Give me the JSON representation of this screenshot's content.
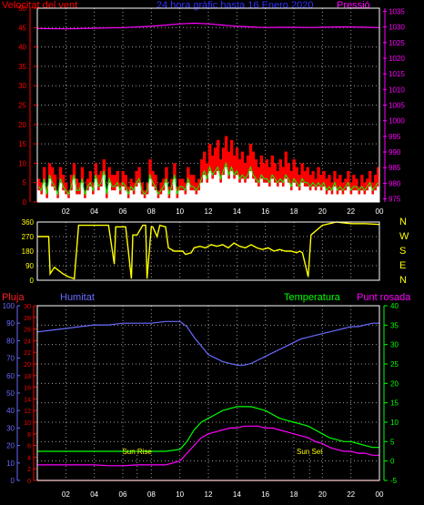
{
  "header": {
    "wind_label": "Velocitat del vent",
    "center_title": "24 hora gràfic hasta 16 Enero 2020",
    "pressure_label": "Pressió"
  },
  "bottom_header": {
    "rain_label": "Pluja",
    "humidity_label": "Humitat",
    "temperature_label": "Temperatura",
    "dewpoint_label": "Punt rosada"
  },
  "annotations": {
    "sunrise": "Sun Rise",
    "sunset": "Sun Set"
  },
  "colors": {
    "wind_gust": "#ff0000",
    "wind_avg": "#00ff00",
    "wind_fill": "#ffffff",
    "pressure": "#ff00ff",
    "direction": "#ffff00",
    "rain": "#ff0000",
    "humidity": "#6a6aff",
    "temperature": "#00ff00",
    "dewpoint": "#ff00ff",
    "left_axis": "#ff0000",
    "right_axis": "#ff00ff",
    "temp_axis": "#00ff00",
    "humidity_axis": "#6a6aff"
  },
  "chart_data": [
    {
      "type": "area",
      "name": "wind",
      "x_ticks": [
        "02",
        "04",
        "06",
        "08",
        "10",
        "12",
        "14",
        "16",
        "18",
        "20",
        "22",
        "00"
      ],
      "y_left_ticks": [
        "0",
        "5",
        "10",
        "15",
        "20",
        "25",
        "30",
        "35",
        "40",
        "45",
        "50"
      ],
      "y_left_range": [
        0,
        50
      ],
      "y_right_ticks": [
        "975",
        "980",
        "985",
        "990",
        "995",
        "1000",
        "1005",
        "1010",
        "1015",
        "1020",
        "1025",
        "1030",
        "1035"
      ],
      "y_right_range": [
        974,
        1036
      ],
      "x_range": [
        0,
        24
      ],
      "gust": [
        6,
        5,
        9,
        4,
        10,
        9,
        7,
        3,
        9,
        7,
        5,
        3,
        7,
        10,
        6,
        5,
        9,
        3,
        6,
        8,
        5,
        10,
        7,
        8,
        11,
        3,
        9,
        7,
        7,
        8,
        5,
        8,
        7,
        4,
        6,
        5,
        8,
        9,
        5,
        3,
        5,
        11,
        8,
        7,
        3,
        5,
        6,
        9,
        4,
        6,
        10,
        4,
        6,
        6,
        5,
        9,
        7,
        7,
        5,
        6,
        11,
        13,
        10,
        15,
        12,
        14,
        16,
        11,
        14,
        17,
        13,
        16,
        12,
        14,
        11,
        13,
        10,
        12,
        15,
        13,
        11,
        9,
        12,
        10,
        11,
        9,
        12,
        10,
        8,
        11,
        9,
        13,
        10,
        8,
        11,
        9,
        7,
        10,
        8,
        9,
        7,
        8,
        6,
        9,
        7,
        8,
        6,
        7,
        5,
        8,
        6,
        7,
        5,
        6,
        8,
        5,
        7,
        6,
        4,
        7,
        5,
        6,
        8,
        5,
        7,
        9
      ],
      "avg": [
        3,
        2,
        5,
        1,
        6,
        4,
        3,
        1,
        5,
        3,
        2,
        1,
        3,
        6,
        2,
        2,
        5,
        1,
        3,
        4,
        2,
        6,
        3,
        4,
        7,
        1,
        5,
        3,
        3,
        4,
        2,
        4,
        3,
        1,
        3,
        2,
        4,
        5,
        2,
        1,
        2,
        6,
        4,
        3,
        1,
        2,
        3,
        5,
        1,
        3,
        6,
        1,
        3,
        3,
        2,
        5,
        3,
        3,
        2,
        3,
        5,
        7,
        5,
        8,
        6,
        7,
        8,
        5,
        7,
        9,
        6,
        8,
        6,
        7,
        5,
        6,
        5,
        6,
        8,
        6,
        5,
        4,
        6,
        5,
        5,
        4,
        6,
        5,
        4,
        5,
        4,
        6,
        5,
        3,
        5,
        4,
        3,
        5,
        4,
        4,
        3,
        4,
        3,
        4,
        3,
        4,
        2,
        3,
        2,
        4,
        2,
        3,
        2,
        3,
        4,
        2,
        3,
        3,
        2,
        3,
        2,
        3,
        4,
        2,
        3,
        4
      ],
      "pressure_x": [
        0,
        2,
        4,
        6,
        8,
        9,
        10,
        11,
        12,
        13,
        14,
        15,
        16,
        17,
        18,
        19,
        20,
        21,
        22,
        23,
        24
      ],
      "pressure": [
        1029.5,
        1029.4,
        1029.6,
        1029.8,
        1030.2,
        1030.6,
        1031.0,
        1031.2,
        1031.0,
        1030.6,
        1030.2,
        1030.0,
        1029.8,
        1029.9,
        1029.9,
        1029.8,
        1029.9,
        1030.0,
        1030.0,
        1029.9,
        1029.8
      ]
    },
    {
      "type": "line",
      "name": "wind-direction",
      "y_ticks": [
        "0",
        "90",
        "180",
        "270",
        "360"
      ],
      "y_range": [
        0,
        360
      ],
      "right_labels": [
        "N",
        "W",
        "S",
        "E",
        "N"
      ],
      "x": [
        0,
        0.8,
        0.9,
        1.2,
        1.5,
        1.8,
        2.2,
        2.6,
        2.9,
        3.2,
        3.6,
        4.0,
        4.5,
        5.0,
        5.4,
        5.5,
        5.9,
        6.2,
        6.6,
        6.7,
        7.0,
        7.4,
        7.6,
        7.7,
        8.0,
        8.1,
        8.4,
        8.6,
        9.0,
        9.2,
        9.6,
        9.8,
        10.2,
        10.4,
        10.8,
        11.0,
        11.4,
        11.8,
        12.2,
        12.6,
        13.0,
        13.4,
        13.8,
        14.2,
        14.6,
        15.0,
        15.4,
        15.8,
        16.2,
        16.6,
        17.0,
        17.4,
        17.8,
        18.2,
        18.4,
        18.6,
        18.9,
        19.0,
        19.2,
        20.0,
        21.0,
        22.0,
        23.0,
        24.0
      ],
      "values": [
        270,
        270,
        40,
        80,
        60,
        40,
        20,
        10,
        340,
        340,
        340,
        340,
        340,
        340,
        100,
        330,
        330,
        330,
        10,
        280,
        280,
        340,
        340,
        10,
        330,
        330,
        270,
        340,
        330,
        200,
        180,
        180,
        180,
        160,
        170,
        200,
        210,
        200,
        220,
        210,
        220,
        200,
        230,
        210,
        200,
        220,
        200,
        190,
        200,
        180,
        190,
        180,
        180,
        170,
        180,
        170,
        60,
        20,
        280,
        340,
        360,
        350,
        350,
        345
      ]
    },
    {
      "type": "line",
      "name": "weather",
      "x_ticks": [
        "02",
        "04",
        "06",
        "08",
        "10",
        "12",
        "14",
        "16",
        "18",
        "20",
        "22",
        "00"
      ],
      "x_range": [
        0,
        24
      ],
      "y_left_ticks": [
        "0",
        "10",
        "20",
        "30",
        "40",
        "50",
        "60",
        "70",
        "80",
        "90",
        "100"
      ],
      "y_left_range": [
        0,
        100
      ],
      "y_rain_ticks": [
        "0",
        "2",
        "4",
        "6",
        "8",
        "10",
        "12",
        "14",
        "16",
        "18",
        "20",
        "22",
        "24",
        "26",
        "28",
        "30"
      ],
      "y_rain_range": [
        0,
        30
      ],
      "y_right_ticks": [
        "-5",
        "0",
        "5",
        "10",
        "15",
        "20",
        "25",
        "30",
        "35",
        "40"
      ],
      "y_right_range": [
        -5,
        40
      ],
      "sunrise_hour": 7.0,
      "sunset_hour": 19.1,
      "x": [
        0,
        1,
        2,
        3,
        4,
        5,
        6,
        7,
        8,
        9,
        10,
        10.5,
        11,
        11.5,
        12,
        12.5,
        13,
        13.5,
        14,
        14.5,
        15,
        15.5,
        16,
        16.5,
        17,
        17.5,
        18,
        18.5,
        19,
        19.5,
        20,
        20.5,
        21,
        21.5,
        22,
        22.5,
        23,
        23.5,
        24
      ],
      "humidity": [
        85,
        86,
        87,
        88,
        89,
        89,
        90,
        90,
        90,
        91,
        91,
        88,
        82,
        77,
        72,
        70,
        68,
        67,
        66,
        66,
        67,
        69,
        71,
        73,
        75,
        77,
        79,
        81,
        82,
        83,
        84,
        85,
        86,
        87,
        88,
        88,
        89,
        90,
        90
      ],
      "temperature": [
        2.5,
        2.5,
        2.5,
        2.5,
        2.5,
        2.5,
        2.5,
        2.5,
        2.5,
        2.5,
        3,
        5,
        8,
        10,
        11,
        12,
        13,
        13.5,
        14,
        14,
        14,
        13.5,
        13,
        12,
        11,
        10.5,
        10,
        9.5,
        9,
        8,
        7,
        6,
        5.5,
        5,
        5,
        4.5,
        4,
        3.5,
        3.5
      ],
      "dewpoint": [
        -1,
        -1,
        -1,
        -1,
        -1,
        -1.2,
        -1.2,
        -1,
        -1,
        -1,
        0,
        2,
        4,
        6,
        7,
        7.5,
        8,
        8.5,
        8.5,
        9,
        9,
        9,
        8.5,
        8.5,
        8,
        7.5,
        7,
        6.5,
        6,
        5,
        4.5,
        3.5,
        3,
        2.5,
        2.5,
        2,
        2,
        1.5,
        1.5
      ],
      "rain": [
        0,
        0,
        0,
        0,
        0,
        0,
        0,
        0,
        0,
        0,
        0,
        0,
        0,
        0,
        0,
        0,
        0,
        0,
        0,
        0,
        0,
        0,
        0,
        0,
        0,
        0,
        0,
        0,
        0,
        0,
        0,
        0,
        0,
        0,
        0,
        0,
        0,
        0,
        0
      ]
    }
  ]
}
